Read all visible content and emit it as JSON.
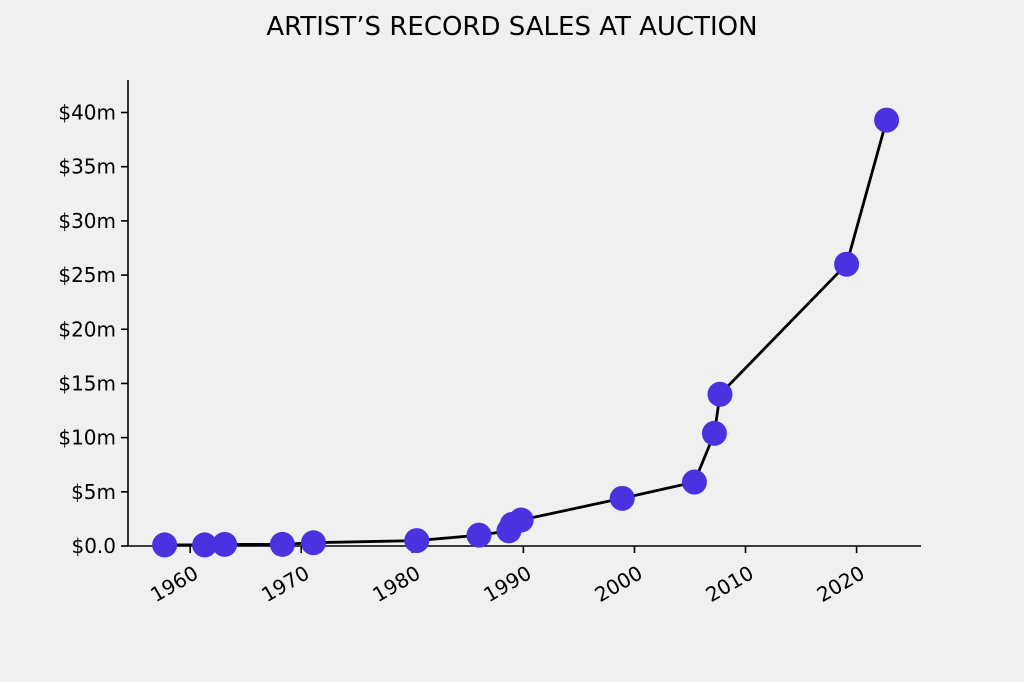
{
  "chart_data": {
    "type": "line",
    "title": "ARTIST’S RECORD SALES AT AUCTION",
    "xlabel": "",
    "ylabel": "",
    "xlim": [
      1954.4,
      2025.8
    ],
    "ylim": [
      0,
      43
    ],
    "x_ticks": [
      1960,
      1970,
      1980,
      1990,
      2000,
      2010,
      2020
    ],
    "x_tick_labels": [
      "1960",
      "1970",
      "1980",
      "1990",
      "2000",
      "2010",
      "2020"
    ],
    "y_ticks": [
      0,
      5,
      10,
      15,
      20,
      25,
      30,
      35,
      40
    ],
    "y_tick_labels": [
      "$0.0",
      "$5m",
      "$10m",
      "$15m",
      "$20m",
      "$25m",
      "$30m",
      "$35m",
      "$40m"
    ],
    "grid": false,
    "colors": {
      "line": "#000000",
      "marker": "#4a32e0",
      "background": "#f0f0f0"
    },
    "series": [
      {
        "x": [
          1957.7,
          1961.3,
          1963.1,
          1968.3,
          1971.1,
          1980.4,
          1986.0,
          1988.7,
          1989.0,
          1989.8,
          1998.9,
          2005.4,
          2007.2,
          2007.7,
          2019.1,
          2022.7
        ],
        "y": [
          0.1,
          0.1,
          0.15,
          0.15,
          0.3,
          0.5,
          1.0,
          1.4,
          2.0,
          2.4,
          4.4,
          5.9,
          10.4,
          14.0,
          26.0,
          39.3
        ]
      }
    ]
  }
}
